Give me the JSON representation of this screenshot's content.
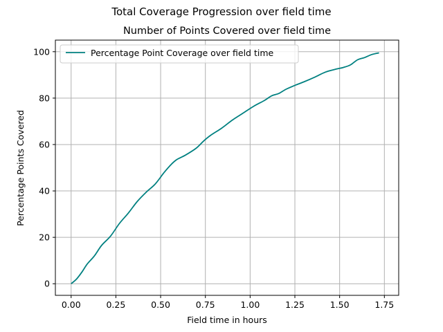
{
  "chart_data": {
    "type": "line",
    "suptitle": "Total Coverage Progression over field time",
    "title": "Number of Points Covered over field time",
    "xlabel": "Field time in hours",
    "ylabel": "Percentage Points Covered",
    "xlim": [
      -0.088,
      1.83
    ],
    "ylim": [
      -5,
      105
    ],
    "xticks": [
      0.0,
      0.25,
      0.5,
      0.75,
      1.0,
      1.25,
      1.5,
      1.75
    ],
    "xtick_labels": [
      "0.00",
      "0.25",
      "0.50",
      "0.75",
      "1.00",
      "1.25",
      "1.50",
      "1.75"
    ],
    "yticks": [
      0,
      20,
      40,
      60,
      80,
      100
    ],
    "ytick_labels": [
      "0",
      "20",
      "40",
      "60",
      "80",
      "100"
    ],
    "grid": true,
    "legend_position": "top-left",
    "series": [
      {
        "name": "Percentage Point Coverage over field time",
        "color": "#008080",
        "x": [
          0.0,
          0.03,
          0.06,
          0.09,
          0.13,
          0.17,
          0.22,
          0.27,
          0.32,
          0.37,
          0.42,
          0.47,
          0.52,
          0.56,
          0.59,
          0.64,
          0.7,
          0.74,
          0.78,
          0.84,
          0.9,
          0.96,
          1.02,
          1.08,
          1.12,
          1.16,
          1.2,
          1.25,
          1.3,
          1.36,
          1.42,
          1.48,
          1.52,
          1.56,
          1.6,
          1.64,
          1.68,
          1.72
        ],
        "y": [
          0,
          2,
          5,
          8.5,
          12,
          16.5,
          20.5,
          26,
          30.5,
          35.5,
          39.5,
          43,
          48,
          51.5,
          53.5,
          55.5,
          58.5,
          61.5,
          64,
          67,
          70.5,
          73.5,
          76.5,
          79,
          81,
          82,
          83.8,
          85.5,
          87,
          89,
          91.2,
          92.5,
          93.2,
          94.3,
          96.5,
          97.5,
          98.8,
          99.5
        ]
      }
    ]
  }
}
